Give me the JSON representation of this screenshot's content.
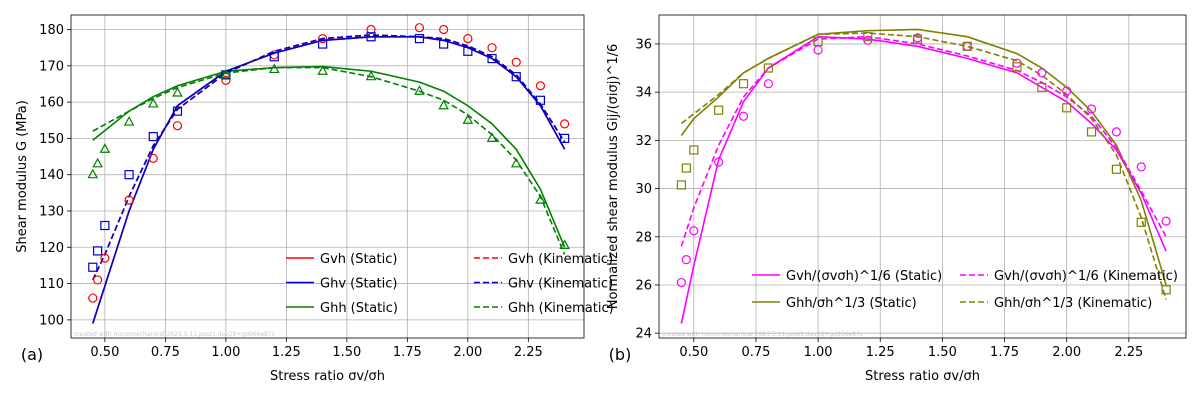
{
  "chart_data": [
    {
      "type": "line",
      "panel_label": "(a)",
      "xlabel": "Stress ratio σv/σh",
      "ylabel": "Shear modulus G (MPa)",
      "xlim": [
        0.36,
        2.48
      ],
      "ylim": [
        95,
        184
      ],
      "xticks": [
        "0.50",
        "0.75",
        "1.00",
        "1.25",
        "1.50",
        "1.75",
        "2.00",
        "2.25"
      ],
      "yticks": [
        "100",
        "110",
        "120",
        "130",
        "140",
        "150",
        "160",
        "170",
        "180"
      ],
      "grid": true,
      "legend_position": "lower-right",
      "legend_columns": 2,
      "watermark": "created with micromechanical 2025.5.11.post1.dev28+gd966e87c",
      "series": [
        {
          "name": "Gvh (Static)",
          "name_base": "G",
          "name_sub": "vh",
          "name_suffix": " (Static)",
          "style": "solid",
          "color": "#ff0000",
          "x": [
            0.45,
            0.6,
            0.7,
            0.8,
            1.0,
            1.2,
            1.4,
            1.6,
            1.8,
            1.9,
            2.0,
            2.1,
            2.2,
            2.3,
            2.4
          ],
          "y": [
            99,
            130,
            147,
            159,
            168.5,
            173.5,
            177,
            178,
            178,
            177,
            175,
            172,
            167,
            159,
            147
          ]
        },
        {
          "name": "Ghv (Static)",
          "name_base": "G",
          "name_sub": "hv",
          "name_suffix": " (Static)",
          "style": "solid",
          "color": "#0000cc",
          "x": [
            0.45,
            0.6,
            0.7,
            0.8,
            1.0,
            1.2,
            1.4,
            1.6,
            1.8,
            1.9,
            2.0,
            2.1,
            2.2,
            2.3,
            2.4
          ],
          "y": [
            99,
            130,
            147,
            159,
            168.5,
            173.5,
            177,
            178,
            178,
            177,
            175,
            172,
            167,
            159,
            147
          ]
        },
        {
          "name": "Ghh (Static)",
          "name_base": "G",
          "name_sub": "hh",
          "name_suffix": " (Static)",
          "style": "solid",
          "color": "#008000",
          "x": [
            0.45,
            0.6,
            0.7,
            0.8,
            1.0,
            1.2,
            1.4,
            1.6,
            1.8,
            1.9,
            2.0,
            2.1,
            2.2,
            2.3,
            2.4
          ],
          "y": [
            149.5,
            157.5,
            161.5,
            164.5,
            168.5,
            169.5,
            169.8,
            168.5,
            165.5,
            163,
            159,
            154,
            147,
            136,
            120
          ]
        },
        {
          "name": "Gvh (Kinematic)",
          "name_base": "G",
          "name_sub": "vh",
          "name_suffix": " (Kinematic)",
          "style": "dashed",
          "color": "#ff0000",
          "x": [
            0.45,
            0.5,
            0.6,
            0.7,
            0.8,
            1.0,
            1.2,
            1.4,
            1.6,
            1.8,
            1.9,
            2.0,
            2.1,
            2.2,
            2.3,
            2.4
          ],
          "y": [
            111,
            118,
            134,
            148,
            158,
            168,
            174,
            177.5,
            178.5,
            178,
            177.5,
            175.5,
            172.5,
            167.5,
            159.5,
            149
          ]
        },
        {
          "name": "Ghv (Kinematic)",
          "name_base": "G",
          "name_sub": "hv",
          "name_suffix": " (Kinematic)",
          "style": "dashed",
          "color": "#0000cc",
          "x": [
            0.45,
            0.5,
            0.6,
            0.7,
            0.8,
            1.0,
            1.2,
            1.4,
            1.6,
            1.8,
            1.9,
            2.0,
            2.1,
            2.2,
            2.3,
            2.4
          ],
          "y": [
            111,
            118,
            134,
            148,
            158,
            168,
            174,
            177.5,
            178.5,
            178,
            177.5,
            175.5,
            172.5,
            167.5,
            159.5,
            149
          ]
        },
        {
          "name": "Ghh (Kinematic)",
          "name_base": "G",
          "name_sub": "hh",
          "name_suffix": " (Kinematic)",
          "style": "dashed",
          "color": "#008000",
          "x": [
            0.45,
            0.6,
            0.7,
            0.8,
            1.0,
            1.2,
            1.4,
            1.6,
            1.8,
            1.9,
            2.0,
            2.1,
            2.2,
            2.3,
            2.4
          ],
          "y": [
            152,
            157.5,
            161,
            164,
            168,
            169.5,
            169.5,
            167,
            163,
            160.5,
            156.5,
            151,
            144,
            134,
            118
          ]
        }
      ],
      "markers": [
        {
          "shape": "circle",
          "color": "#ff0000",
          "x": [
            0.45,
            0.47,
            0.5,
            0.6,
            0.7,
            0.8,
            1.0,
            1.2,
            1.4,
            1.6,
            1.8,
            1.9,
            2.0,
            2.1,
            2.2,
            2.3,
            2.4
          ],
          "y": [
            106,
            111,
            117,
            133,
            144.5,
            153.5,
            166,
            173,
            177.5,
            180,
            180.5,
            180,
            177.5,
            175,
            171,
            164.5,
            154
          ]
        },
        {
          "shape": "square",
          "color": "#0000cc",
          "x": [
            0.45,
            0.47,
            0.5,
            0.6,
            0.7,
            0.8,
            1.0,
            1.2,
            1.4,
            1.6,
            1.8,
            1.9,
            2.0,
            2.1,
            2.2,
            2.3,
            2.4
          ],
          "y": [
            114.5,
            119,
            126,
            140,
            150.5,
            157.5,
            167.5,
            172.5,
            176,
            178,
            177.5,
            176,
            174,
            172,
            167,
            160.5,
            150
          ]
        },
        {
          "shape": "triangle",
          "color": "#008000",
          "x": [
            0.45,
            0.47,
            0.5,
            0.6,
            0.7,
            0.8,
            1.0,
            1.2,
            1.4,
            1.6,
            1.8,
            1.9,
            2.0,
            2.1,
            2.2,
            2.3,
            2.4
          ],
          "y": [
            140,
            143,
            147,
            154.5,
            159.5,
            162.5,
            167.5,
            169,
            168.5,
            167,
            163,
            159,
            155,
            150,
            143,
            133,
            120.5
          ]
        }
      ]
    },
    {
      "type": "line",
      "panel_label": "(b)",
      "xlabel": "Stress ratio σv/σh",
      "ylabel": "Normalized shear modulus Gij/(σiσj)^1/6",
      "xlim": [
        0.36,
        2.48
      ],
      "ylim": [
        23.8,
        37.2
      ],
      "xticks": [
        "0.50",
        "0.75",
        "1.00",
        "1.25",
        "1.50",
        "1.75",
        "2.00",
        "2.25"
      ],
      "yticks": [
        "24",
        "26",
        "28",
        "30",
        "32",
        "34",
        "36"
      ],
      "grid": true,
      "legend_position": "lower-right",
      "legend_columns": 2,
      "watermark": "created with micromechanical 2025.5.11.post1.dev28+gd966e87c",
      "series": [
        {
          "name": "Gvh/(σvσh)^1/6 (Static)",
          "label_kind": "vh",
          "name_suffix": " (Static)",
          "style": "solid",
          "color": "#ff00ff",
          "x": [
            0.45,
            0.5,
            0.6,
            0.7,
            0.8,
            1.0,
            1.2,
            1.4,
            1.6,
            1.8,
            1.9,
            2.0,
            2.1,
            2.2,
            2.3,
            2.4
          ],
          "y": [
            24.4,
            26.8,
            31.2,
            33.6,
            35,
            36.3,
            36.2,
            35.9,
            35.4,
            34.8,
            34.2,
            33.6,
            32.7,
            31.6,
            29.8,
            27.4
          ]
        },
        {
          "name": "Ghh/σh^1/3 (Static)",
          "label_kind": "hh",
          "name_suffix": " (Static)",
          "style": "solid",
          "color": "#808000",
          "x": [
            0.45,
            0.5,
            0.6,
            0.7,
            0.8,
            1.0,
            1.2,
            1.4,
            1.6,
            1.8,
            1.9,
            2.0,
            2.1,
            2.2,
            2.3,
            2.4
          ],
          "y": [
            32.2,
            32.9,
            33.8,
            34.8,
            35.4,
            36.4,
            36.55,
            36.6,
            36.3,
            35.6,
            35.0,
            34.2,
            33.2,
            31.8,
            29.5,
            26.0
          ]
        },
        {
          "name": "Gvh/(σvσh)^1/6 (Kinematic)",
          "label_kind": "vh",
          "name_suffix": " (Kinematic)",
          "style": "dashed",
          "color": "#ff00ff",
          "x": [
            0.45,
            0.5,
            0.6,
            0.7,
            0.8,
            1.0,
            1.2,
            1.4,
            1.6,
            1.8,
            1.9,
            2.0,
            2.1,
            2.2,
            2.3,
            2.4
          ],
          "y": [
            27.6,
            29.2,
            31.8,
            33.8,
            35,
            36.2,
            36.3,
            36.0,
            35.5,
            34.9,
            34.4,
            33.8,
            33.0,
            31.7,
            29.9,
            28.0
          ]
        },
        {
          "name": "Ghh/σh^1/3 (Kinematic)",
          "label_kind": "hh",
          "name_suffix": " (Kinematic)",
          "style": "dashed",
          "color": "#808000",
          "x": [
            0.45,
            0.5,
            0.6,
            0.7,
            0.8,
            1.0,
            1.2,
            1.4,
            1.6,
            1.8,
            1.9,
            2.0,
            2.1,
            2.2,
            2.3,
            2.4
          ],
          "y": [
            32.7,
            33.1,
            33.9,
            34.8,
            35.4,
            36.4,
            36.45,
            36.3,
            35.9,
            35.3,
            34.7,
            33.9,
            32.9,
            31.4,
            28.8,
            25.4
          ]
        }
      ],
      "markers": [
        {
          "shape": "circle",
          "color": "#ff00ff",
          "x": [
            0.45,
            0.47,
            0.5,
            0.6,
            0.7,
            0.8,
            1.0,
            1.2,
            1.4,
            1.6,
            1.8,
            1.9,
            2.0,
            2.1,
            2.2,
            2.3,
            2.4
          ],
          "y": [
            26.1,
            27.05,
            28.25,
            31.1,
            33.0,
            34.35,
            35.75,
            36.15,
            36.25,
            35.9,
            35.2,
            34.8,
            34.05,
            33.3,
            32.35,
            30.9,
            28.65
          ]
        },
        {
          "shape": "square",
          "color": "#808000",
          "x": [
            0.45,
            0.47,
            0.5,
            0.6,
            0.7,
            0.8,
            1.0,
            1.2,
            1.4,
            1.6,
            1.8,
            1.9,
            2.0,
            2.1,
            2.2,
            2.3,
            2.4
          ],
          "y": [
            30.15,
            30.85,
            31.6,
            33.25,
            34.35,
            35.0,
            36.1,
            36.3,
            36.2,
            35.9,
            35.05,
            34.2,
            33.35,
            32.35,
            30.8,
            28.6,
            25.8
          ]
        }
      ]
    }
  ]
}
